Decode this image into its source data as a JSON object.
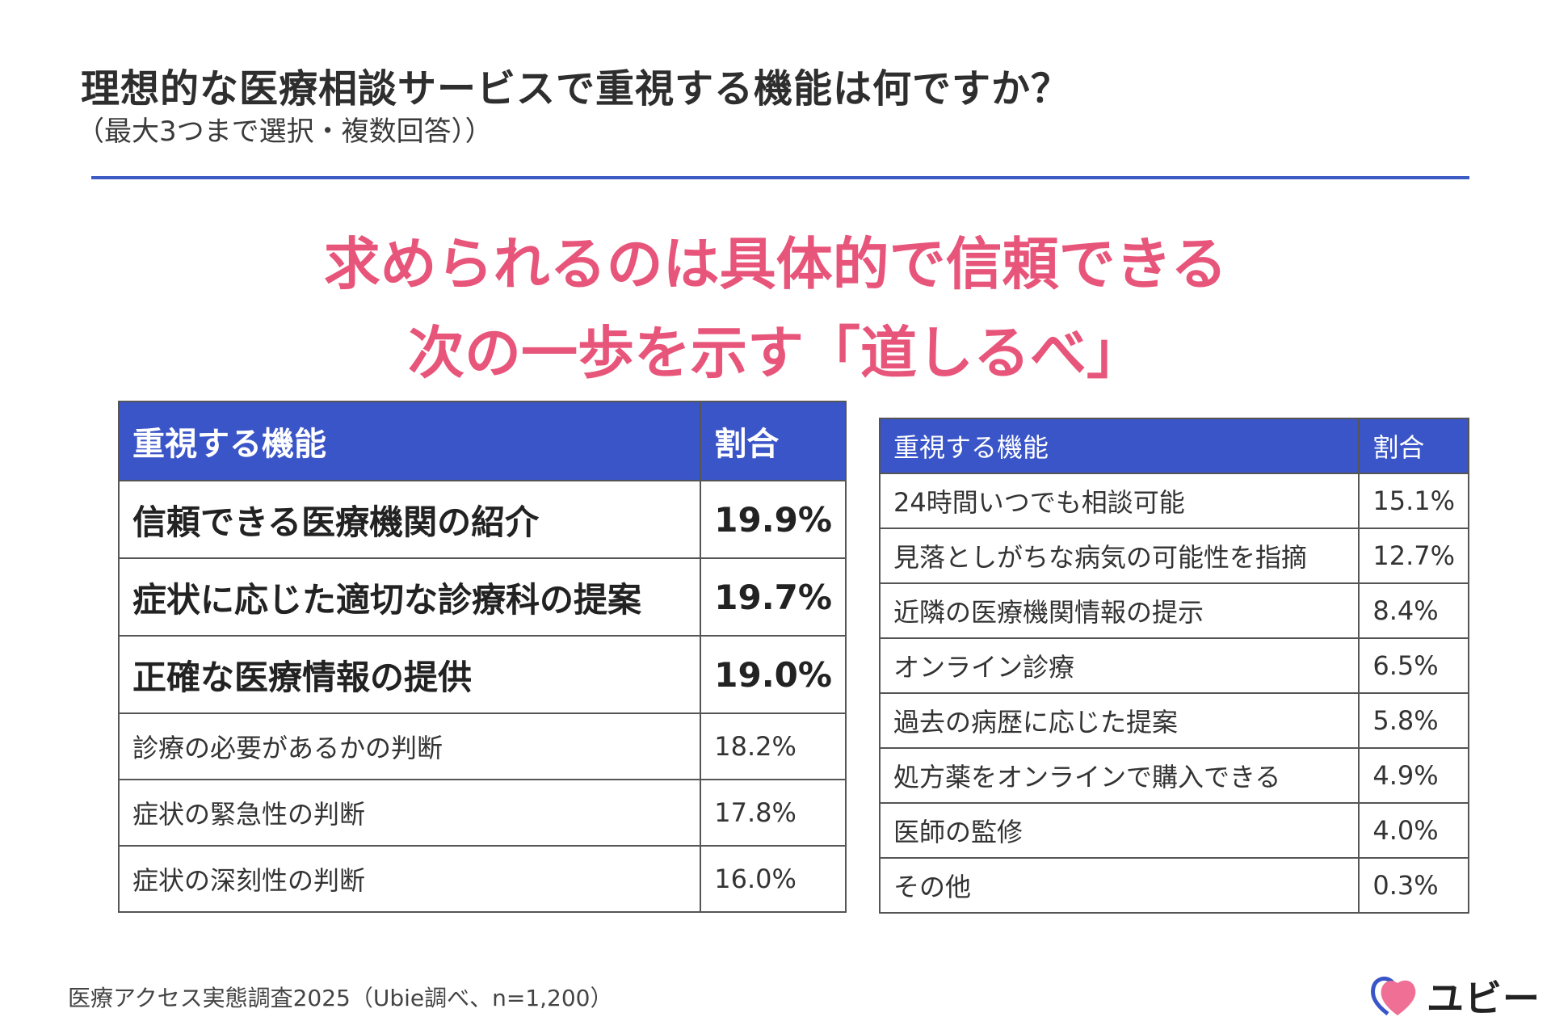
{
  "header": {
    "title": "理想的な医療相談サービスで重視する機能は何ですか？",
    "subtitle": "（最大3つまで選択・複数回答））"
  },
  "headline": {
    "line1": "求められるのは具体的で信頼できる",
    "line2": "次の一歩を示す「道しるべ」"
  },
  "colors": {
    "accent_blue": "#3a55c8",
    "headline_pink": "#e8557a"
  },
  "table_left": {
    "headers": [
      "重視する機能",
      "割合"
    ],
    "rows": [
      {
        "feature": "信頼できる医療機関の紹介",
        "value": "19.9%"
      },
      {
        "feature": "症状に応じた適切な診療科の提案",
        "value": "19.7%"
      },
      {
        "feature": "正確な医療情報の提供",
        "value": "19.0%"
      },
      {
        "feature": "診療の必要があるかの判断",
        "value": "18.2%"
      },
      {
        "feature": "症状の緊急性の判断",
        "value": "17.8%"
      },
      {
        "feature": "症状の深刻性の判断",
        "value": "16.0%"
      }
    ]
  },
  "table_right": {
    "headers": [
      "重視する機能",
      "割合"
    ],
    "rows": [
      {
        "feature": "24時間いつでも相談可能",
        "value": "15.1%"
      },
      {
        "feature": "見落としがちな病気の可能性を指摘",
        "value": "12.7%"
      },
      {
        "feature": "近隣の医療機関情報の提示",
        "value": "8.4%"
      },
      {
        "feature": "オンライン診療",
        "value": "6.5%"
      },
      {
        "feature": "過去の病歴に応じた提案",
        "value": "5.8%"
      },
      {
        "feature": "処方薬をオンラインで購入できる",
        "value": "4.9%"
      },
      {
        "feature": "医師の監修",
        "value": "4.0%"
      },
      {
        "feature": "その他",
        "value": "0.3%"
      }
    ]
  },
  "footer": {
    "source": "医療アクセス実態調査2025（Ubie調べ、n=1,200）",
    "logo_text": "ユビー",
    "logo_icon": "heart-icon"
  }
}
